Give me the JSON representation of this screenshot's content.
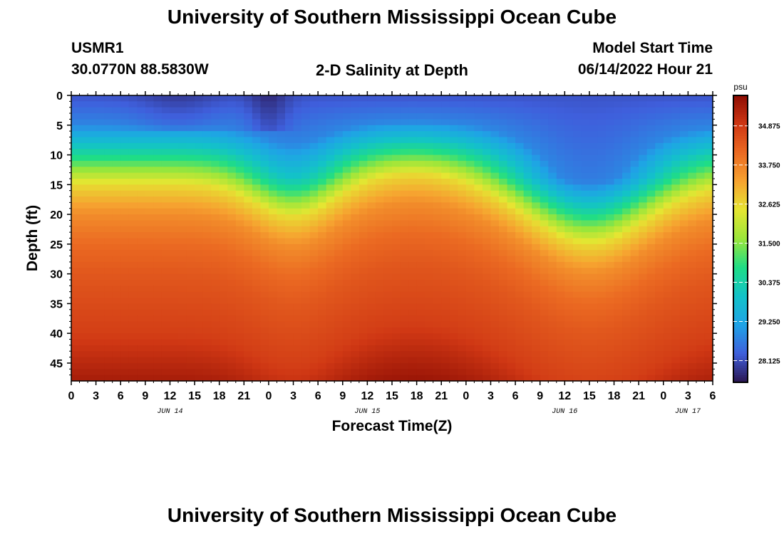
{
  "page": {
    "title": "University of Southern Mississippi Ocean Cube",
    "footer_title": "University of Southern Mississippi Ocean Cube"
  },
  "header": {
    "station": "USMR1",
    "coords": "30.0770N  88.5830W",
    "plot_title": "2-D Salinity at Depth",
    "model_start_label": "Model Start Time",
    "model_start_value": "06/14/2022 Hour 21"
  },
  "chart_data": {
    "type": "heatmap",
    "title": "2-D Salinity at Depth",
    "xlabel": "Forecast Time(Z)",
    "ylabel": "Depth (ft)",
    "x_tick_labels": [
      "0",
      "3",
      "6",
      "9",
      "12",
      "15",
      "18",
      "21",
      "0",
      "3",
      "6",
      "9",
      "12",
      "15",
      "18",
      "21",
      "0",
      "3",
      "6",
      "9",
      "12",
      "15",
      "18",
      "21",
      "0",
      "3",
      "6"
    ],
    "date_labels": [
      "JUN 14",
      "JUN 15",
      "JUN 16",
      "JUN 17"
    ],
    "xlim_hours": [
      0,
      78
    ],
    "y_ticks": [
      0,
      5,
      10,
      15,
      20,
      25,
      30,
      35,
      40,
      45
    ],
    "ylim": [
      0,
      48
    ],
    "y_inverted": true,
    "colorbar": {
      "unit": "psu",
      "ticks": [
        34.875,
        33.75,
        32.625,
        31.5,
        30.375,
        29.25,
        28.125
      ],
      "tick_labels": [
        "34.875",
        "33.750",
        "32.625",
        "31.500",
        "30.375",
        "29.250",
        "28.125"
      ],
      "range": [
        27.5,
        35.75
      ],
      "colors": [
        "#2a1550",
        "#3f5fdc",
        "#1fa3e6",
        "#13c2c9",
        "#1fdd86",
        "#9be63a",
        "#e5e632",
        "#f6a330",
        "#eb6a22",
        "#cf3714",
        "#8d0d03"
      ]
    },
    "depth_profile": [
      {
        "depth": 0,
        "salinity": 28.2
      },
      {
        "depth": 5,
        "salinity": 28.8
      },
      {
        "depth": 10,
        "salinity": 30.6
      },
      {
        "depth": 15,
        "salinity": 32.6
      },
      {
        "depth": 20,
        "salinity": 33.6
      },
      {
        "depth": 25,
        "salinity": 34.1
      },
      {
        "depth": 30,
        "salinity": 34.4
      },
      {
        "depth": 35,
        "salinity": 34.6
      },
      {
        "depth": 40,
        "salinity": 34.8
      },
      {
        "depth": 45,
        "salinity": 35.2
      }
    ]
  }
}
